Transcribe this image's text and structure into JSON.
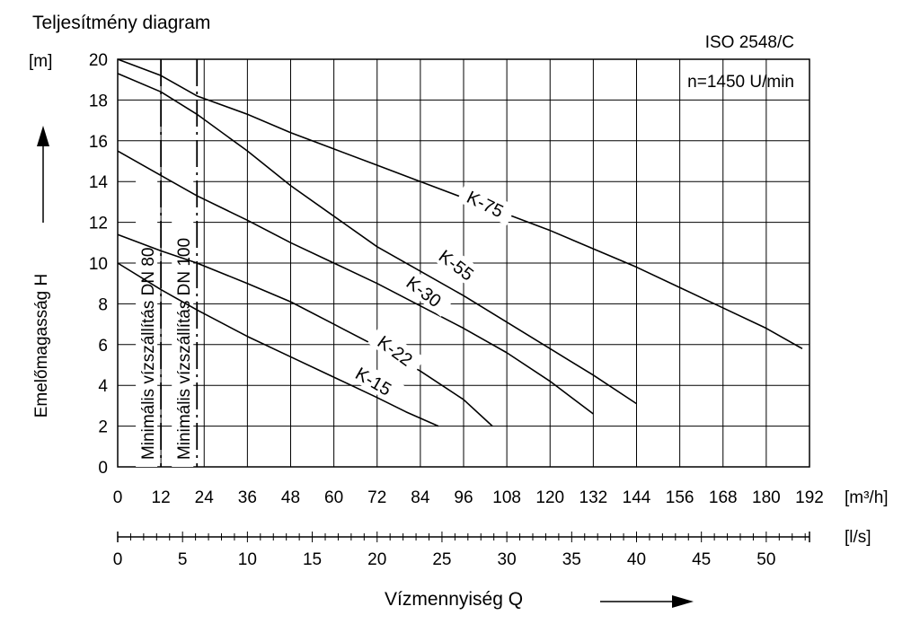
{
  "chart_data": {
    "type": "line",
    "title": "Teljesítmény diagram",
    "standard": "ISO 2548/C",
    "speed": "n=1450 U/min",
    "ylabel": "Emelőmagasság H",
    "yunit": "[m]",
    "xlabel": "Vízmennyiség Q",
    "xunit": "[m³/h]",
    "x2unit": "[l/s]",
    "xlim": [
      0,
      192
    ],
    "ylim": [
      0,
      20
    ],
    "grid": true,
    "x_ticks": [
      0,
      12,
      24,
      36,
      48,
      60,
      72,
      84,
      96,
      108,
      120,
      132,
      144,
      156,
      168,
      180,
      192
    ],
    "y_ticks": [
      0,
      2,
      4,
      6,
      8,
      10,
      12,
      14,
      16,
      18,
      20
    ],
    "x2_ticks": [
      0,
      5,
      10,
      15,
      20,
      25,
      30,
      35,
      40,
      45,
      50
    ],
    "limits": [
      {
        "label": "Minimális vízszállítás DN 80",
        "x": 12
      },
      {
        "label": "Minimális vízszállítás DN 100",
        "x": 22
      }
    ],
    "series": [
      {
        "name": "K-75",
        "x": [
          0,
          12,
          22,
          36,
          48,
          60,
          72,
          84,
          96,
          108,
          120,
          132,
          144,
          156,
          168,
          180,
          190
        ],
        "y": [
          20,
          19.2,
          18.2,
          17.3,
          16.4,
          15.6,
          14.8,
          14.0,
          13.2,
          12.4,
          11.6,
          10.7,
          9.8,
          8.8,
          7.8,
          6.8,
          5.8
        ]
      },
      {
        "name": "K-55",
        "x": [
          0,
          12,
          22,
          36,
          48,
          60,
          72,
          84,
          96,
          108,
          120,
          132,
          144
        ],
        "y": [
          19.3,
          18.4,
          17.3,
          15.5,
          13.8,
          12.3,
          10.8,
          9.6,
          8.4,
          7.1,
          5.8,
          4.5,
          3.1
        ]
      },
      {
        "name": "K-30",
        "x": [
          0,
          12,
          22,
          36,
          48,
          60,
          72,
          84,
          96,
          108,
          120,
          132
        ],
        "y": [
          15.5,
          14.3,
          13.3,
          12.1,
          11.0,
          10.0,
          9.0,
          7.9,
          6.8,
          5.6,
          4.2,
          2.6
        ]
      },
      {
        "name": "K-22",
        "x": [
          0,
          12,
          22,
          36,
          48,
          60,
          72,
          84,
          96,
          104
        ],
        "y": [
          11.4,
          10.6,
          10.0,
          9.0,
          8.1,
          7.0,
          5.9,
          4.7,
          3.3,
          2.0
        ]
      },
      {
        "name": "K-15",
        "x": [
          0,
          12,
          22,
          36,
          48,
          60,
          72,
          80,
          89
        ],
        "y": [
          10.0,
          8.7,
          7.7,
          6.4,
          5.4,
          4.4,
          3.4,
          2.7,
          2.0
        ]
      }
    ]
  }
}
